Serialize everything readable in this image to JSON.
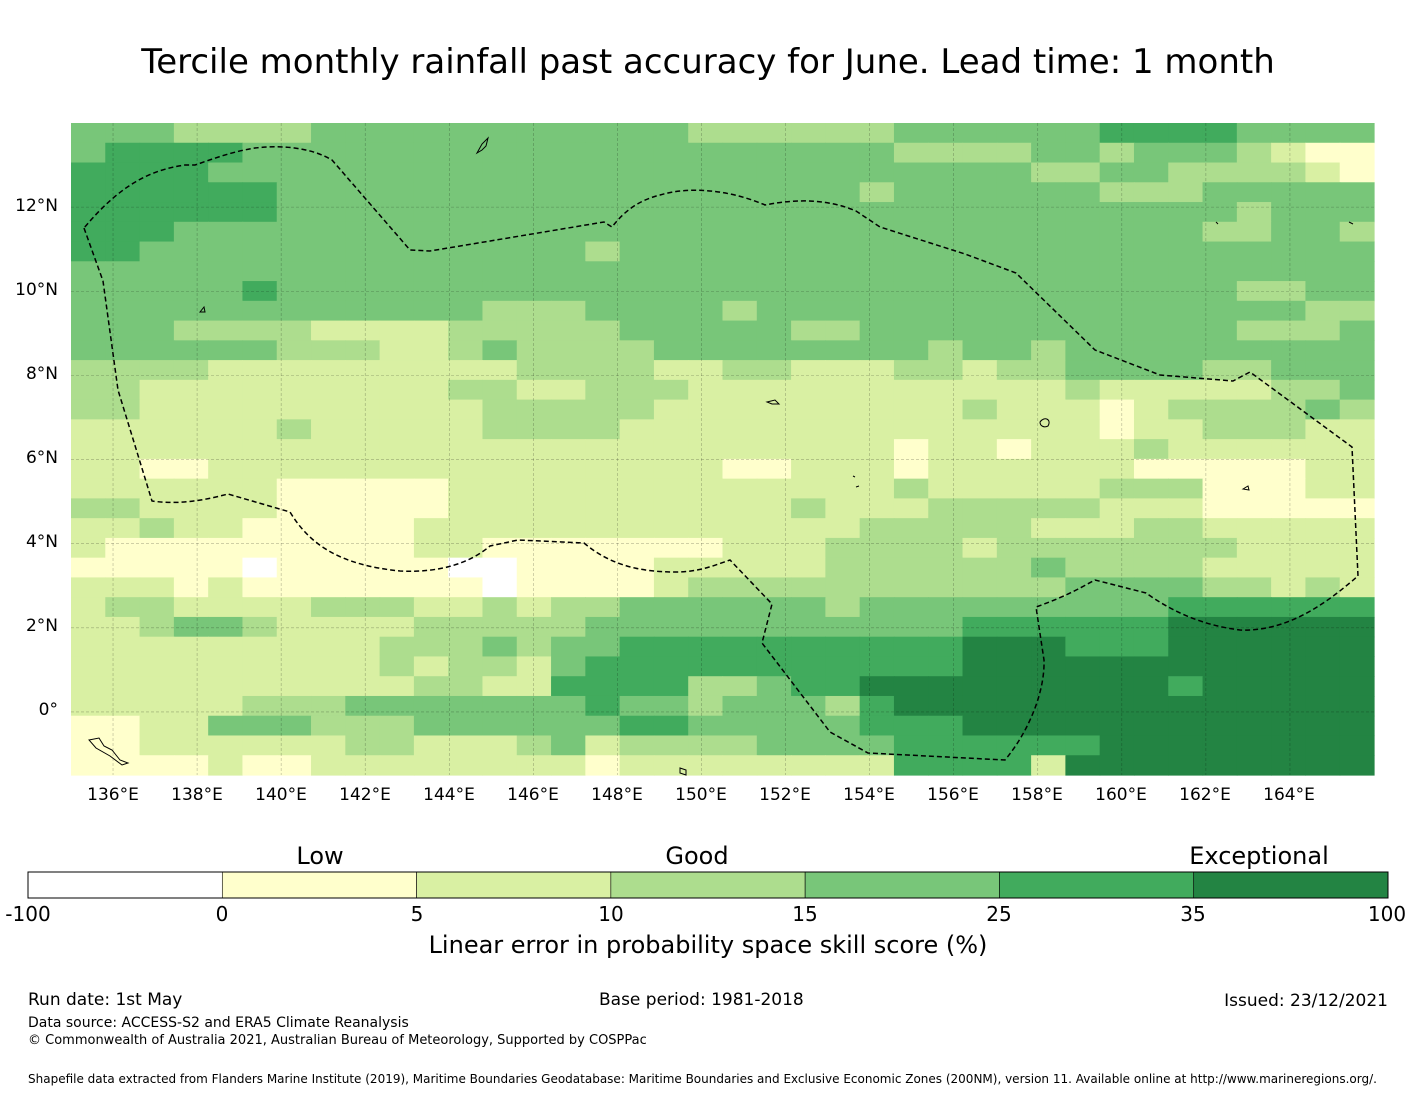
{
  "title": "Tercile monthly rainfall past accuracy for June. Lead time: 1 month",
  "chart_data": {
    "type": "heatmap",
    "title": "Tercile monthly rainfall past accuracy for June. Lead time: 1 month",
    "x_axis": {
      "range": [
        135.0,
        166.0
      ],
      "ticks": [
        136,
        138,
        140,
        142,
        144,
        146,
        148,
        150,
        152,
        154,
        156,
        158,
        160,
        162,
        164
      ],
      "tick_labels": [
        "136°E",
        "138°E",
        "140°E",
        "142°E",
        "144°E",
        "146°E",
        "148°E",
        "150°E",
        "152°E",
        "154°E",
        "156°E",
        "158°E",
        "160°E",
        "162°E",
        "164°E"
      ]
    },
    "y_axis": {
      "range": [
        -1.5,
        14.0
      ],
      "ticks": [
        0,
        2,
        4,
        6,
        8,
        10,
        12
      ],
      "tick_labels": [
        "0°",
        "2°N",
        "4°N",
        "6°N",
        "8°N",
        "10°N",
        "12°N"
      ]
    },
    "grid": true,
    "cell_size_deg": [
      0.8333,
      0.5556
    ],
    "color_classes": [
      "#ffffff",
      "#ffffcc",
      "#d9f0a3",
      "#addd8e",
      "#78c679",
      "#41ab5d",
      "#238443"
    ],
    "value_grid_top_to_bottom": [
      "44433334444444444433333344444455554444",
      "45555444444444444444444433334434443211",
      "55554444444444444444444444443344333321",
      "55555544444444444444444344444433344444",
      "55555544444444444444444444444444443444",
      "55544444444444444444444444444444433443",
      "55444444444444434444444444444444444444",
      "44444444444444444444444444444444444444",
      "44444544444444444444444444444444443344",
      "44444444444433344443444444444444444433",
      "44433332222333334444433444444444443334",
      "44444433322343333444444443443444444444",
      "33332222222223333223322233233444433444",
      "33222222222332233322222222222322222334",
      "33222222222233333222222222322212333343",
      "22222232222233332222222222222212233322",
      "22222222222222222222222212212223222222",
      "22112222222222222221122212222221111122",
      "22222211111222222222222232222233311122",
      "33222211111222222222232223333322211111",
      "22322111112222222222222333332223322222",
      "21111111112211111112223333233333332222",
      "11111011111001111222223333334333322222",
      "22212111111101111233333333333444433232",
      "23322223332232334444443444444444555555",
      "22344322223333344444444444555555666666",
      "22222222233343445555555555666555666666",
      "22222222232332455555555555666666666666",
      "22222222223322555533455666666666566666",
      "22222333444444454434443566666666666666",
      "11224443334444445544444555666666666666",
      "11222222332223423333444455555566666666",
      "11112112222222212222222255552666666666"
    ],
    "legend": {
      "title": "Linear error in probability space skill score (%)",
      "bin_edges": [
        -100,
        0,
        5,
        10,
        15,
        25,
        35,
        100
      ],
      "categories": [
        "Low",
        "Good",
        "Exceptional"
      ]
    }
  },
  "colorbar": {
    "label": "Linear error in probability space skill score (%)",
    "tick_labels": [
      "-100",
      "0",
      "5",
      "10",
      "15",
      "25",
      "35",
      "100"
    ],
    "categories": [
      "Low",
      "Good",
      "Exceptional"
    ]
  },
  "footer": {
    "run_date": "Run date: 1st May",
    "base_period": "Base period: 1981-2018",
    "issued": "Issued: 23/12/2021",
    "data_source": "Data source: ACCESS-S2 and ERA5 Climate Reanalysis",
    "copyright": "© Commonwealth of Australia 2021, Australian Bureau of Meteorology, Supported by COSPPac",
    "shapefile": "Shapefile data extracted from Flanders Marine Institute (2019), Maritime Boundaries Geodatabase: Maritime Boundaries and Exclusive Economic Zones (200NM), version 11. Available online at http://www.marineregions.org/."
  }
}
